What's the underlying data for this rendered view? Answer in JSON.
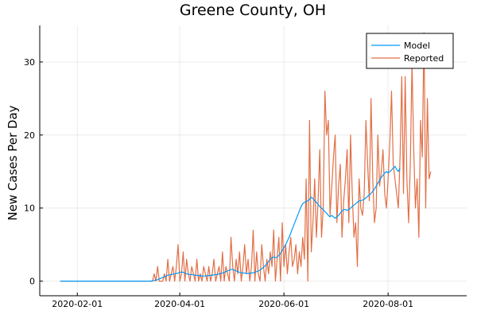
{
  "chart_data": {
    "type": "line",
    "title": "Greene County, OH",
    "xlabel": "",
    "ylabel": "New Cases Per Day",
    "x_ticks": [
      {
        "label": "2020-02-01",
        "day": 31
      },
      {
        "label": "2020-04-01",
        "day": 91
      },
      {
        "label": "2020-06-01",
        "day": 152
      },
      {
        "label": "2020-08-01",
        "day": 213
      }
    ],
    "y_ticks": [
      0,
      10,
      20,
      30
    ],
    "xlim": [
      "2020-01-10",
      "2020-09-16"
    ],
    "ylim": [
      -2,
      35
    ],
    "grid": true,
    "legend_position": "top-right",
    "series": [
      {
        "name": "Model",
        "color": "#009af9",
        "x_start": "2020-01-22",
        "values": [
          0,
          0,
          0,
          0,
          0,
          0,
          0,
          0,
          0,
          0,
          0,
          0,
          0,
          0,
          0,
          0,
          0,
          0,
          0,
          0,
          0,
          0,
          0,
          0,
          0,
          0,
          0,
          0,
          0,
          0,
          0,
          0,
          0,
          0,
          0,
          0,
          0,
          0,
          0,
          0,
          0,
          0,
          0,
          0,
          0,
          0,
          0,
          0,
          0,
          0,
          0,
          0,
          0,
          0,
          0.05,
          0.1,
          0.15,
          0.2,
          0.3,
          0.4,
          0.5,
          0.6,
          0.7,
          0.8,
          0.85,
          0.9,
          0.95,
          1.0,
          1.05,
          1.1,
          1.2,
          1.25,
          1.2,
          1.1,
          1.0,
          0.95,
          0.9,
          0.9,
          0.85,
          0.8,
          0.8,
          0.75,
          0.75,
          0.7,
          0.7,
          0.7,
          0.75,
          0.75,
          0.8,
          0.8,
          0.85,
          0.9,
          0.9,
          1.0,
          1.05,
          1.1,
          1.2,
          1.3,
          1.4,
          1.5,
          1.6,
          1.6,
          1.5,
          1.4,
          1.3,
          1.2,
          1.15,
          1.1,
          1.1,
          1.05,
          1.05,
          1.1,
          1.1,
          1.15,
          1.2,
          1.3,
          1.4,
          1.5,
          1.7,
          1.9,
          2.1,
          2.4,
          2.7,
          3.0,
          3.2,
          3.3,
          3.2,
          3.3,
          3.5,
          3.8,
          4.2,
          4.6,
          5.0,
          5.5,
          6.0,
          6.6,
          7.2,
          7.8,
          8.4,
          9.0,
          9.6,
          10.2,
          10.6,
          10.8,
          10.9,
          11.0,
          11.2,
          11.5,
          11.3,
          11.0,
          10.8,
          10.5,
          10.2,
          10.0,
          9.8,
          9.5,
          9.3,
          9.0,
          8.8,
          9.0,
          8.8,
          8.6,
          8.8,
          9.0,
          9.3,
          9.6,
          9.8,
          9.8,
          9.7,
          9.8,
          10.0,
          10.2,
          10.4,
          10.6,
          10.8,
          11.0,
          11.0,
          11.1,
          11.2,
          11.4,
          11.6,
          11.8,
          12.0,
          12.3,
          12.6,
          13.0,
          13.4,
          13.8,
          14.2,
          14.5,
          14.8,
          15.0,
          14.8,
          15.0,
          15.2,
          15.5,
          15.7,
          15.3,
          15.0,
          15.5
        ]
      },
      {
        "name": "Reported",
        "color": "#e26f46",
        "x_start": "2020-01-22",
        "values": [
          0,
          0,
          0,
          0,
          0,
          0,
          0,
          0,
          0,
          0,
          0,
          0,
          0,
          0,
          0,
          0,
          0,
          0,
          0,
          0,
          0,
          0,
          0,
          0,
          0,
          0,
          0,
          0,
          0,
          0,
          0,
          0,
          0,
          0,
          0,
          0,
          0,
          0,
          0,
          0,
          0,
          0,
          0,
          0,
          0,
          0,
          0,
          0,
          0,
          0,
          0,
          0,
          0,
          0,
          0,
          1,
          0,
          2,
          0,
          0,
          0,
          1,
          0,
          3,
          0,
          1,
          2,
          0,
          2,
          5,
          0,
          1,
          4,
          0,
          3,
          1,
          0,
          2,
          1,
          0,
          3,
          0,
          1,
          0,
          2,
          1,
          0,
          2,
          0,
          1,
          3,
          0,
          1,
          2,
          0,
          4,
          0,
          2,
          1,
          0,
          6,
          2,
          0,
          3,
          1,
          4,
          0,
          2,
          5,
          1,
          3,
          0,
          2,
          7,
          0,
          4,
          1,
          0,
          5,
          2,
          0,
          3,
          1,
          4,
          2,
          7,
          0,
          3,
          6,
          0,
          8,
          2,
          5,
          1,
          4,
          6,
          2,
          3,
          5,
          1,
          4,
          2,
          6,
          3,
          14,
          0,
          22,
          4,
          8,
          14,
          6,
          11,
          18,
          6,
          10,
          26,
          20,
          22,
          9,
          13,
          17,
          20,
          8,
          13,
          16,
          6,
          11,
          14,
          18,
          8,
          20,
          12,
          6,
          8,
          2,
          14,
          10,
          9,
          12,
          22,
          16,
          11,
          25,
          14,
          8,
          10,
          20,
          13,
          15,
          18,
          12,
          10,
          14,
          19,
          26,
          16,
          14,
          12,
          10,
          17,
          28,
          12,
          28,
          14,
          8,
          16,
          30,
          18,
          10,
          14,
          6,
          22,
          17,
          34,
          10,
          25,
          14,
          15
        ]
      }
    ]
  }
}
